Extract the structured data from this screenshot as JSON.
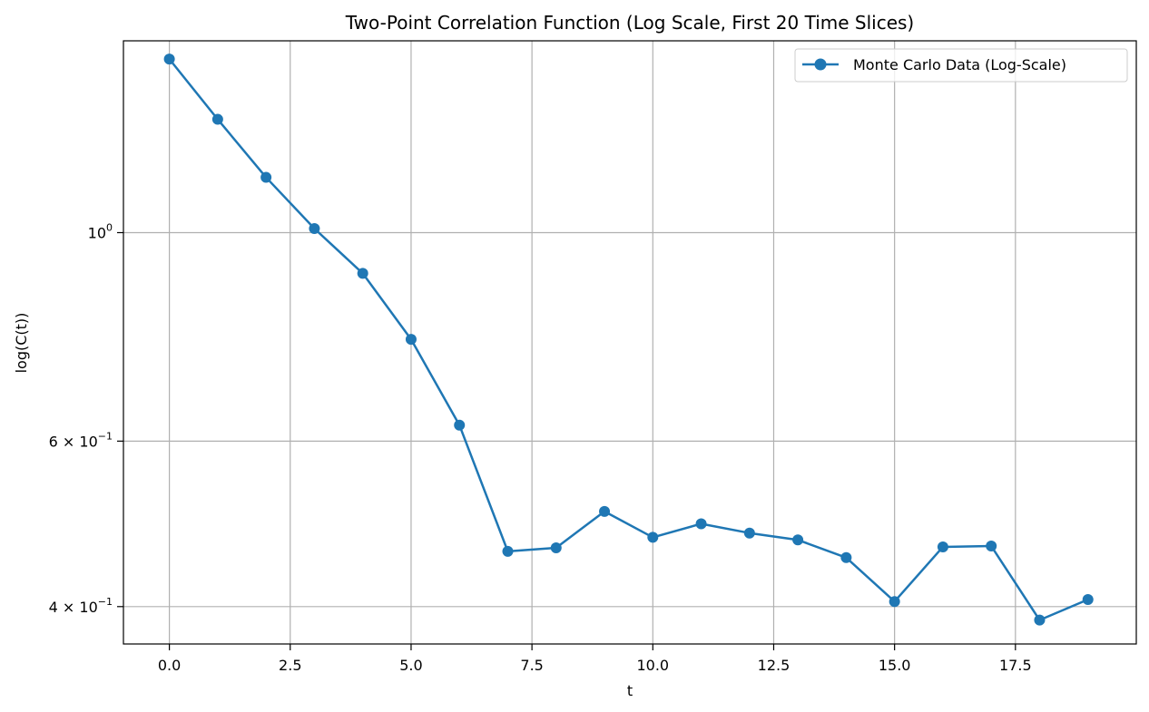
{
  "chart_data": {
    "type": "line",
    "title": "Two-Point Correlation Function (Log Scale, First 20 Time Slices)",
    "xlabel": "t",
    "ylabel": "log(C(t))",
    "xlim": [
      -0.95,
      20.0
    ],
    "ylim": [
      0.365,
      1.6
    ],
    "yscale": "log",
    "grid": true,
    "legend_position": "top-right",
    "x_ticks": [
      {
        "value": 0.0,
        "label": "0.0"
      },
      {
        "value": 2.5,
        "label": "2.5"
      },
      {
        "value": 5.0,
        "label": "5.0"
      },
      {
        "value": 7.5,
        "label": "7.5"
      },
      {
        "value": 10.0,
        "label": "10.0"
      },
      {
        "value": 12.5,
        "label": "12.5"
      },
      {
        "value": 15.0,
        "label": "15.0"
      },
      {
        "value": 17.5,
        "label": "17.5"
      }
    ],
    "y_ticks": [
      {
        "value": 1.0,
        "base": "10",
        "exp": "0"
      },
      {
        "value": 0.6,
        "base": "6 × 10",
        "exp": "−1"
      },
      {
        "value": 0.4,
        "base": "4 × 10",
        "exp": "−1"
      }
    ],
    "series": [
      {
        "name": "Monte Carlo Data (Log-Scale)",
        "color": "#1f77b4",
        "x": [
          0,
          1,
          2,
          3,
          4,
          5,
          6,
          7,
          8,
          9,
          10,
          11,
          12,
          13,
          14,
          15,
          16,
          17,
          18,
          19
        ],
        "values": [
          1.53,
          1.32,
          1.145,
          1.01,
          0.905,
          0.77,
          0.624,
          0.458,
          0.462,
          0.505,
          0.474,
          0.49,
          0.479,
          0.471,
          0.451,
          0.405,
          0.463,
          0.464,
          0.387,
          0.407
        ]
      }
    ]
  }
}
